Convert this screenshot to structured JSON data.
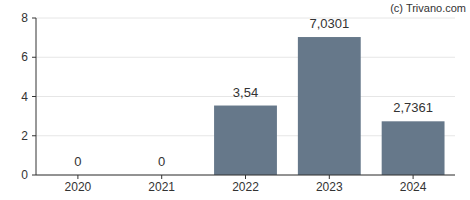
{
  "chart_data": {
    "type": "bar",
    "annotations": [
      "(c) Trivano.com"
    ],
    "categories": [
      "2020",
      "2021",
      "2022",
      "2023",
      "2024"
    ],
    "values": [
      0,
      0,
      3.54,
      7.0301,
      2.7361
    ],
    "value_labels": [
      "0",
      "0",
      "3,54",
      "7,0301",
      "2,7361"
    ],
    "color": "#66788a",
    "ylim": [
      0,
      8
    ],
    "yticks": [
      0,
      2,
      4,
      6,
      8
    ],
    "grid": true,
    "data_labels": true
  }
}
